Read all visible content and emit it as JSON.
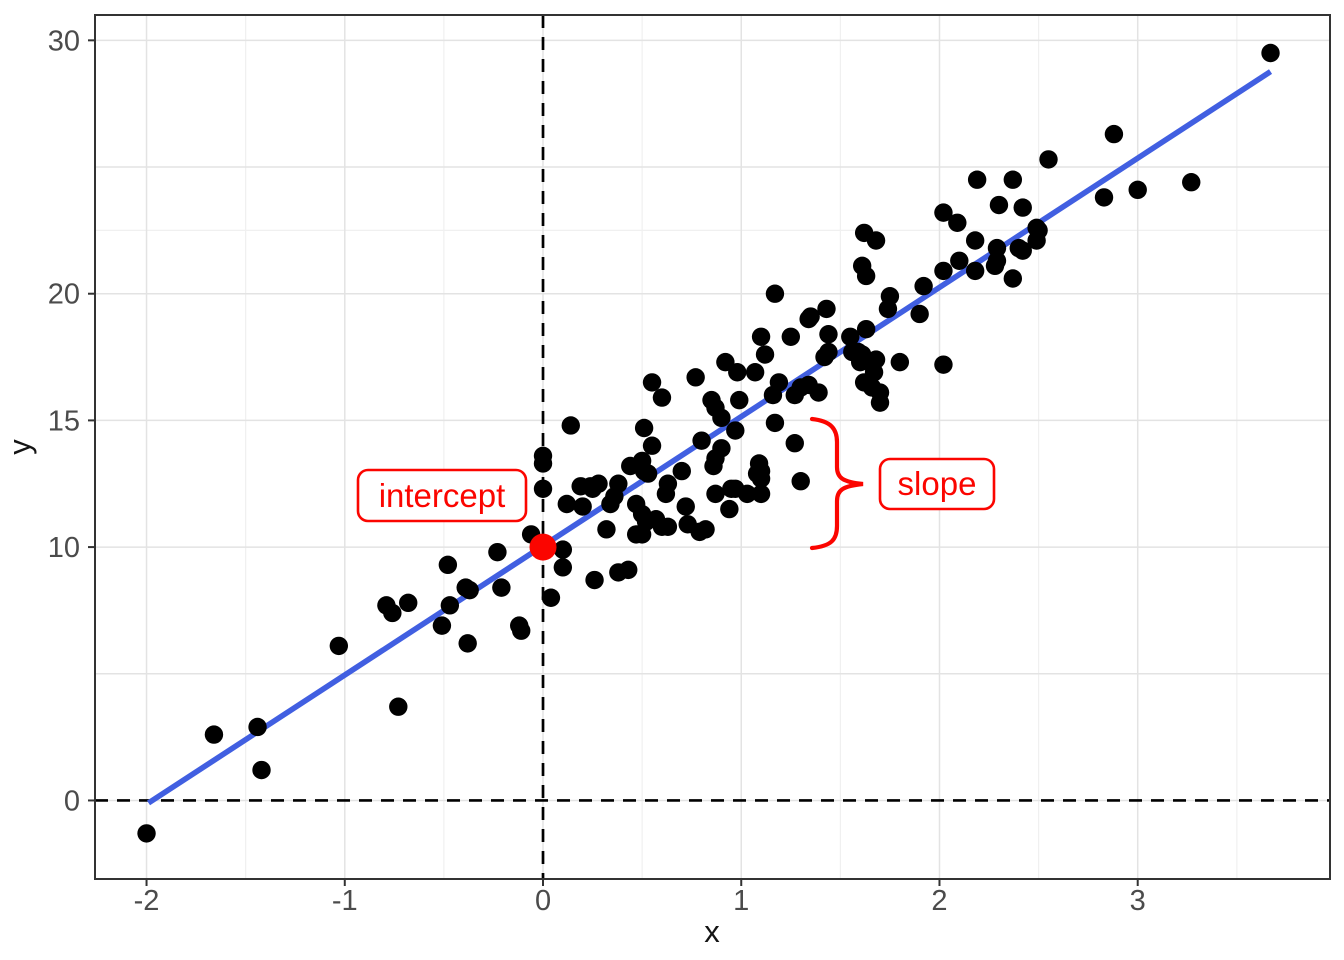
{
  "figure": {
    "x_axis": {
      "title": "x",
      "tick_labels": [
        "-2",
        "-1",
        "0",
        "1",
        "2",
        "3"
      ],
      "tick_values": [
        -2,
        -1,
        0,
        1,
        2,
        3
      ],
      "minor_gridlines": [
        -1.5,
        -0.5,
        0.5,
        1.5,
        2.5,
        3.5
      ]
    },
    "y_axis": {
      "title": "y",
      "tick_labels": [
        "0",
        "10",
        "15",
        "20",
        "30"
      ],
      "tick_values": [
        0,
        10,
        15,
        20,
        30
      ],
      "major_gridlines": [
        0,
        5,
        10,
        15,
        20,
        25,
        30
      ],
      "minor_gridlines": [
        22.5
      ]
    },
    "annotations": {
      "intercept_label": "intercept",
      "slope_label": "slope"
    }
  },
  "chart_data": {
    "type": "scatter",
    "xlabel": "x",
    "ylabel": "y",
    "xlim": [
      -2.26,
      3.97
    ],
    "ylim": [
      -3.1,
      31.0
    ],
    "grid": true,
    "point_color": "#000000",
    "colors": {
      "regression_line": "#415FE1",
      "annotation_red": "#FB0500",
      "reference_line": "#000000",
      "grid_major": "#E3E3E3",
      "grid_minor": "#F0F0F0",
      "panel_border": "#333333",
      "tick_text": "#4B4B4B"
    },
    "regression_line": {
      "intercept": 10.05,
      "slope": 5.1,
      "x_range": [
        -1.99,
        3.67
      ]
    },
    "reference_lines": {
      "vertical_x": 0,
      "horizontal_y": 0,
      "style": "dashed"
    },
    "intercept_point": {
      "x": 0,
      "y": 10
    },
    "slope_brace": {
      "x": 1.36,
      "y_from": 10,
      "y_to": 15
    },
    "points": [
      [
        -2.0,
        -1.3
      ],
      [
        -1.66,
        2.6
      ],
      [
        -1.44,
        2.9
      ],
      [
        -1.42,
        1.2
      ],
      [
        -1.03,
        6.1
      ],
      [
        -0.79,
        7.7
      ],
      [
        -0.76,
        7.4
      ],
      [
        -0.68,
        7.8
      ],
      [
        -0.73,
        3.7
      ],
      [
        -0.51,
        6.9
      ],
      [
        -0.48,
        9.3
      ],
      [
        -0.47,
        7.7
      ],
      [
        -0.39,
        8.4
      ],
      [
        -0.37,
        8.3
      ],
      [
        -0.38,
        6.2
      ],
      [
        -0.23,
        9.8
      ],
      [
        -0.21,
        8.4
      ],
      [
        -0.12,
        6.9
      ],
      [
        -0.11,
        6.7
      ],
      [
        -0.06,
        10.5
      ],
      [
        0.04,
        8.0
      ],
      [
        0.1,
        9.9
      ],
      [
        0.1,
        9.2
      ],
      [
        0.26,
        8.7
      ],
      [
        0.32,
        10.7
      ],
      [
        0.38,
        9.0
      ],
      [
        0.43,
        9.1
      ],
      [
        0.47,
        10.5
      ],
      [
        0.0,
        13.6
      ],
      [
        0.0,
        13.3
      ],
      [
        0.0,
        12.3
      ],
      [
        0.12,
        11.7
      ],
      [
        0.19,
        12.4
      ],
      [
        0.25,
        12.3
      ],
      [
        0.2,
        11.6
      ],
      [
        0.34,
        11.7
      ],
      [
        0.38,
        12.5
      ],
      [
        0.14,
        14.8
      ],
      [
        0.47,
        11.7
      ],
      [
        0.5,
        11.3
      ],
      [
        0.52,
        11.0
      ],
      [
        0.57,
        11.1
      ],
      [
        0.6,
        10.8
      ],
      [
        0.63,
        10.8
      ],
      [
        0.5,
        10.5
      ],
      [
        0.72,
        11.6
      ],
      [
        0.73,
        10.9
      ],
      [
        0.82,
        10.7
      ],
      [
        0.79,
        10.6
      ],
      [
        0.28,
        12.5
      ],
      [
        0.24,
        12.4
      ],
      [
        0.36,
        12.0
      ],
      [
        0.44,
        13.2
      ],
      [
        0.5,
        13.4
      ],
      [
        0.51,
        13.0
      ],
      [
        0.53,
        12.9
      ],
      [
        0.63,
        12.5
      ],
      [
        0.62,
        12.1
      ],
      [
        0.7,
        13.0
      ],
      [
        0.87,
        12.1
      ],
      [
        0.95,
        12.3
      ],
      [
        0.97,
        12.3
      ],
      [
        1.03,
        12.1
      ],
      [
        1.1,
        12.1
      ],
      [
        0.94,
        11.5
      ],
      [
        1.09,
        13.3
      ],
      [
        1.1,
        13.0
      ],
      [
        1.08,
        12.9
      ],
      [
        1.1,
        12.7
      ],
      [
        1.3,
        12.6
      ],
      [
        1.27,
        14.1
      ],
      [
        1.17,
        14.9
      ],
      [
        0.51,
        14.7
      ],
      [
        0.55,
        14.0
      ],
      [
        0.8,
        14.2
      ],
      [
        0.9,
        13.9
      ],
      [
        0.87,
        13.5
      ],
      [
        0.86,
        13.2
      ],
      [
        0.97,
        14.6
      ],
      [
        0.55,
        16.5
      ],
      [
        0.6,
        15.9
      ],
      [
        0.85,
        15.8
      ],
      [
        0.87,
        15.5
      ],
      [
        0.99,
        15.8
      ],
      [
        0.9,
        15.1
      ],
      [
        0.77,
        16.7
      ],
      [
        0.92,
        17.3
      ],
      [
        0.98,
        16.9
      ],
      [
        1.07,
        16.9
      ],
      [
        1.19,
        16.5
      ],
      [
        1.16,
        16.0
      ],
      [
        1.27,
        16.0
      ],
      [
        1.3,
        16.3
      ],
      [
        1.34,
        16.4
      ],
      [
        1.39,
        16.1
      ],
      [
        1.1,
        18.3
      ],
      [
        1.25,
        18.3
      ],
      [
        1.12,
        17.6
      ],
      [
        1.42,
        17.5
      ],
      [
        1.44,
        17.7
      ],
      [
        1.44,
        18.4
      ],
      [
        1.34,
        19.0
      ],
      [
        1.55,
        18.3
      ],
      [
        1.17,
        20.0
      ],
      [
        1.35,
        19.1
      ],
      [
        1.43,
        19.4
      ],
      [
        1.56,
        17.7
      ],
      [
        1.59,
        17.7
      ],
      [
        1.61,
        17.6
      ],
      [
        1.6,
        17.3
      ],
      [
        1.65,
        17.3
      ],
      [
        1.68,
        17.4
      ],
      [
        1.67,
        16.9
      ],
      [
        1.62,
        16.5
      ],
      [
        1.66,
        16.3
      ],
      [
        1.7,
        16.1
      ],
      [
        1.7,
        15.7
      ],
      [
        1.8,
        17.3
      ],
      [
        2.02,
        17.2
      ],
      [
        1.63,
        18.6
      ],
      [
        1.62,
        22.4
      ],
      [
        1.68,
        22.1
      ],
      [
        1.61,
        21.1
      ],
      [
        1.63,
        20.7
      ],
      [
        1.75,
        19.9
      ],
      [
        1.74,
        19.4
      ],
      [
        1.92,
        20.3
      ],
      [
        1.9,
        19.2
      ],
      [
        2.02,
        23.2
      ],
      [
        2.09,
        22.8
      ],
      [
        2.02,
        20.9
      ],
      [
        2.1,
        21.3
      ],
      [
        2.18,
        22.1
      ],
      [
        2.18,
        20.9
      ],
      [
        2.19,
        24.5
      ],
      [
        2.28,
        21.1
      ],
      [
        2.29,
        21.3
      ],
      [
        2.29,
        21.8
      ],
      [
        2.3,
        23.5
      ],
      [
        2.37,
        24.5
      ],
      [
        2.37,
        20.6
      ],
      [
        2.4,
        21.8
      ],
      [
        2.42,
        23.4
      ],
      [
        2.42,
        21.7
      ],
      [
        2.49,
        22.6
      ],
      [
        2.5,
        22.5
      ],
      [
        2.49,
        22.1
      ],
      [
        2.55,
        25.3
      ],
      [
        2.83,
        23.8
      ],
      [
        2.88,
        26.3
      ],
      [
        3.0,
        24.1
      ],
      [
        3.27,
        24.4
      ],
      [
        3.67,
        29.5
      ]
    ]
  }
}
